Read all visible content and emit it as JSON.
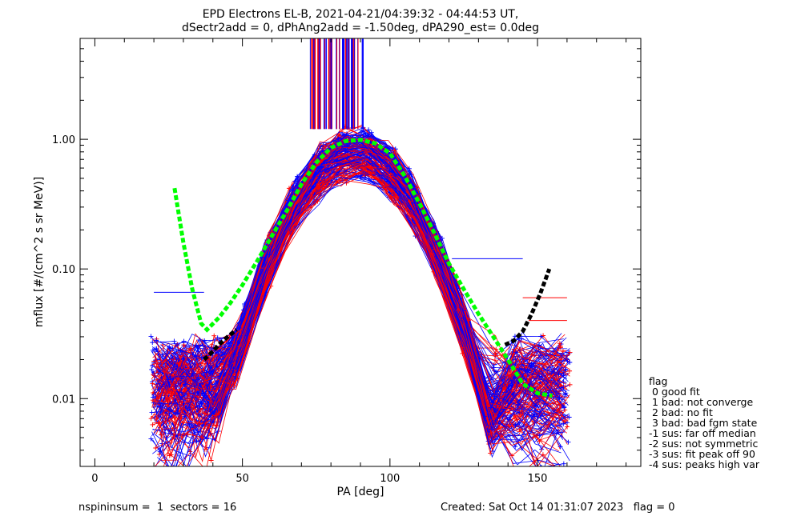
{
  "chart_data": {
    "type": "line",
    "title": "EPD Electrons EL-B, 2021-04-21/04:39:32 - 04:44:53 UT,",
    "subtitle": "dSectr2add = 0, dPhAng2add = -1.50deg, dPA290_est=   0.0deg",
    "xlabel": "PA [deg]",
    "ylabel": "mflux [#/(cm^2 s sr MeV)]",
    "xlim": [
      -5,
      185
    ],
    "ylim": [
      0.003,
      6.0
    ],
    "yscale": "log",
    "xticks": [
      0,
      50,
      100,
      150
    ],
    "xtick_labels": [
      "0",
      "50",
      "100",
      "150"
    ],
    "yticks": [
      0.01,
      0.1,
      1.0
    ],
    "ytick_labels": [
      "0.01",
      "0.10",
      "1.00"
    ],
    "grid": false,
    "series": [
      {
        "color": "#00ff00",
        "style": "dashed-thick",
        "x": [
          27,
          30,
          33,
          36,
          38,
          42,
          46,
          50,
          55,
          60,
          65,
          70,
          75,
          80,
          85,
          90,
          95,
          100,
          105,
          110,
          115,
          120,
          125,
          130,
          135,
          140,
          145,
          150,
          155
        ],
        "y": [
          0.42,
          0.16,
          0.07,
          0.038,
          0.034,
          0.042,
          0.055,
          0.075,
          0.115,
          0.18,
          0.28,
          0.45,
          0.66,
          0.86,
          0.97,
          0.99,
          0.93,
          0.78,
          0.52,
          0.32,
          0.19,
          0.11,
          0.07,
          0.045,
          0.03,
          0.02,
          0.013,
          0.011,
          0.0105
        ]
      },
      {
        "color": "#000000",
        "style": "dashed-thick",
        "x": [
          37,
          39,
          42,
          45,
          48
        ],
        "y": [
          0.02,
          0.022,
          0.026,
          0.03,
          0.034
        ]
      },
      {
        "color": "#000000",
        "style": "dashed-thick",
        "x": [
          139,
          142,
          145,
          148,
          151,
          154
        ],
        "y": [
          0.026,
          0.028,
          0.033,
          0.045,
          0.065,
          0.1
        ]
      }
    ]
  },
  "annotations": {
    "footer_left": "nspininsum =  1  sectors = 16",
    "footer_right": "Created: Sat Oct 14 01:31:07 2023   flag = 0"
  },
  "legend": {
    "title": "flag",
    "items": [
      " 0 good fit",
      " 1 bad: not converge",
      " 2 bad: no fit",
      " 3 bad: bad fgm state",
      "-1 sus: far off median",
      "-2 sus: not symmetric",
      "-3 sus: fit peak off 90",
      "-4 sus: peaks high var"
    ]
  },
  "colors": {
    "red": "#ff0000",
    "blue": "#0000ff",
    "green": "#00ff00",
    "black": "#000000"
  }
}
